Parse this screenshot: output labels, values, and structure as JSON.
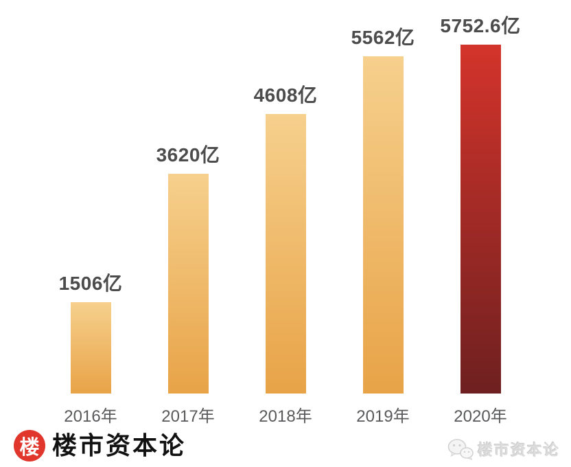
{
  "chart_data": {
    "type": "bar",
    "title": "",
    "xlabel": "",
    "ylabel": "",
    "categories": [
      "2016年",
      "2017年",
      "2018年",
      "2019年",
      "2020年"
    ],
    "values": [
      1506,
      3620,
      4608,
      5562,
      5752.6
    ],
    "value_labels": [
      "1506亿",
      "3620亿",
      "4608亿",
      "5562亿",
      "5752.6亿"
    ],
    "unit": "亿",
    "ylim": [
      0,
      5752.6
    ],
    "grid": false,
    "legend": false,
    "axes_visible": false,
    "highlight_index": 4,
    "bar_gradients": [
      {
        "top": "#F6D08D",
        "bottom": "#E8A347"
      },
      {
        "top": "#F6D08D",
        "bottom": "#E8A347"
      },
      {
        "top": "#F6D08D",
        "bottom": "#E8A347"
      },
      {
        "top": "#F6D08D",
        "bottom": "#E8A347"
      },
      {
        "top": "#D3342B",
        "bottom": "#6E2020"
      }
    ]
  },
  "colors": {
    "background": "#FFFFFF",
    "value_label": "#4C4C4C",
    "year_label": "#58595B",
    "logo_red": "#E0362B",
    "watermark_gray": "#DCDCDC"
  },
  "footer": {
    "logo_char": "楼",
    "brand_text": "楼市资本论"
  },
  "watermark": {
    "icon": "wechat-icon",
    "text": "楼市资本论"
  }
}
